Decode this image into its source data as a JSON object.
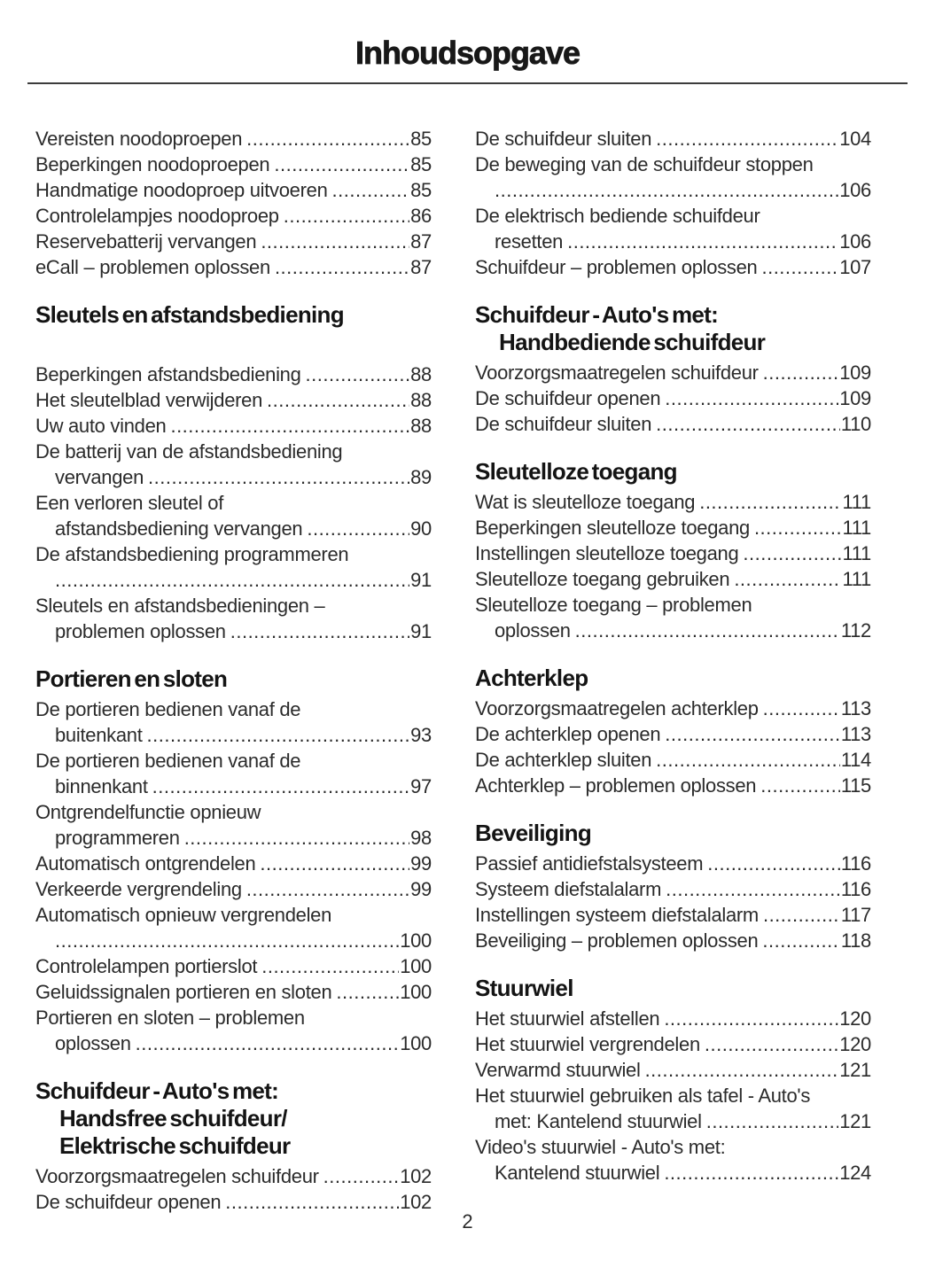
{
  "page": {
    "title": "Inhoudsopgave",
    "page_number": "2"
  },
  "columns": [
    {
      "side": "left",
      "sections": [
        {
          "heading": null,
          "entries": [
            {
              "lines": [
                "Vereisten noodoproepen"
              ],
              "page": "85"
            },
            {
              "lines": [
                "Beperkingen noodoproepen"
              ],
              "page": "85"
            },
            {
              "lines": [
                "Handmatige noodoproep uitvoeren"
              ],
              "page": "85"
            },
            {
              "lines": [
                "Controlelampjes noodoproep"
              ],
              "page": "86"
            },
            {
              "lines": [
                "Reservebatterij vervangen"
              ],
              "page": "87"
            },
            {
              "lines": [
                "eCall – problemen oplossen"
              ],
              "page": "87"
            }
          ]
        },
        {
          "heading": [
            "Sleutels en afstandsbediening"
          ],
          "extra_gap": true,
          "entries": [
            {
              "lines": [
                "Beperkingen afstandsbediening"
              ],
              "page": "88"
            },
            {
              "lines": [
                "Het sleutelblad verwijderen"
              ],
              "page": "88"
            },
            {
              "lines": [
                "Uw auto vinden"
              ],
              "page": "88"
            },
            {
              "lines": [
                "De batterij van de afstandsbediening",
                "vervangen"
              ],
              "page": "89"
            },
            {
              "lines": [
                "Een verloren sleutel of",
                "afstandsbediening vervangen"
              ],
              "page": "90"
            },
            {
              "lines": [
                "De afstandsbediening programmeren",
                ""
              ],
              "page": "91"
            },
            {
              "lines": [
                "Sleutels en afstandsbedieningen –",
                "problemen oplossen"
              ],
              "page": "91"
            }
          ]
        },
        {
          "heading": [
            "Portieren en sloten"
          ],
          "entries": [
            {
              "lines": [
                "De portieren bedienen vanaf de",
                "buitenkant"
              ],
              "page": "93"
            },
            {
              "lines": [
                "De portieren bedienen vanaf de",
                "binnenkant"
              ],
              "page": "97"
            },
            {
              "lines": [
                "Ontgrendelfunctie opnieuw",
                "programmeren"
              ],
              "page": "98"
            },
            {
              "lines": [
                "Automatisch ontgrendelen"
              ],
              "page": "99"
            },
            {
              "lines": [
                "Verkeerde vergrendeling"
              ],
              "page": "99"
            },
            {
              "lines": [
                "Automatisch opnieuw vergrendelen",
                ""
              ],
              "page": "100"
            },
            {
              "lines": [
                "Controlelampen portierslot"
              ],
              "page": "100"
            },
            {
              "lines": [
                "Geluidssignalen portieren en sloten"
              ],
              "page": "100"
            },
            {
              "lines": [
                "Portieren en sloten – problemen",
                "oplossen"
              ],
              "page": "100"
            }
          ]
        },
        {
          "heading": [
            "Schuifdeur - Auto's met:",
            "Handsfree schuifdeur/",
            "Elektrische schuifdeur"
          ],
          "entries": [
            {
              "lines": [
                "Voorzorgsmaatregelen schuifdeur"
              ],
              "page": "102"
            },
            {
              "lines": [
                "De schuifdeur openen"
              ],
              "page": "102"
            }
          ]
        }
      ]
    },
    {
      "side": "right",
      "sections": [
        {
          "heading": null,
          "entries": [
            {
              "lines": [
                "De schuifdeur sluiten"
              ],
              "page": "104"
            },
            {
              "lines": [
                "De beweging van de schuifdeur stoppen",
                ""
              ],
              "page": "106"
            },
            {
              "lines": [
                "De elektrisch bediende schuifdeur",
                "resetten"
              ],
              "page": "106"
            },
            {
              "lines": [
                "Schuifdeur – problemen oplossen"
              ],
              "page": "107"
            }
          ]
        },
        {
          "heading": [
            "Schuifdeur - Auto's met:",
            "Handbediende schuifdeur"
          ],
          "entries": [
            {
              "lines": [
                "Voorzorgsmaatregelen schuifdeur"
              ],
              "page": "109"
            },
            {
              "lines": [
                "De schuifdeur openen"
              ],
              "page": "109"
            },
            {
              "lines": [
                "De schuifdeur sluiten"
              ],
              "page": "110"
            }
          ]
        },
        {
          "heading": [
            "Sleutelloze toegang"
          ],
          "entries": [
            {
              "lines": [
                "Wat is sleutelloze toegang"
              ],
              "page": "111"
            },
            {
              "lines": [
                "Beperkingen sleutelloze toegang"
              ],
              "page": "111"
            },
            {
              "lines": [
                "Instellingen sleutelloze toegang"
              ],
              "page": "111"
            },
            {
              "lines": [
                "Sleutelloze toegang gebruiken"
              ],
              "page": "111"
            },
            {
              "lines": [
                "Sleutelloze toegang – problemen",
                "oplossen"
              ],
              "page": "112"
            }
          ]
        },
        {
          "heading": [
            "Achterklep"
          ],
          "entries": [
            {
              "lines": [
                "Voorzorgsmaatregelen achterklep"
              ],
              "page": "113"
            },
            {
              "lines": [
                "De achterklep openen"
              ],
              "page": "113"
            },
            {
              "lines": [
                "De achterklep sluiten"
              ],
              "page": "114"
            },
            {
              "lines": [
                "Achterklep – problemen oplossen"
              ],
              "page": "115"
            }
          ]
        },
        {
          "heading": [
            "Beveiliging"
          ],
          "entries": [
            {
              "lines": [
                "Passief antidiefstalsysteem"
              ],
              "page": "116"
            },
            {
              "lines": [
                "Systeem diefstalalarm"
              ],
              "page": "116"
            },
            {
              "lines": [
                "Instellingen systeem diefstalalarm"
              ],
              "page": "117"
            },
            {
              "lines": [
                "Beveiliging – problemen oplossen"
              ],
              "page": "118"
            }
          ]
        },
        {
          "heading": [
            "Stuurwiel"
          ],
          "entries": [
            {
              "lines": [
                "Het stuurwiel afstellen"
              ],
              "page": "120"
            },
            {
              "lines": [
                "Het stuurwiel vergrendelen"
              ],
              "page": "120"
            },
            {
              "lines": [
                "Verwarmd stuurwiel"
              ],
              "page": "121"
            },
            {
              "lines": [
                "Het stuurwiel gebruiken als tafel - Auto's",
                "met: Kantelend stuurwiel"
              ],
              "page": "121"
            },
            {
              "lines": [
                "Video's stuurwiel - Auto's met:",
                "Kantelend stuurwiel"
              ],
              "page": "124"
            }
          ]
        }
      ]
    }
  ]
}
